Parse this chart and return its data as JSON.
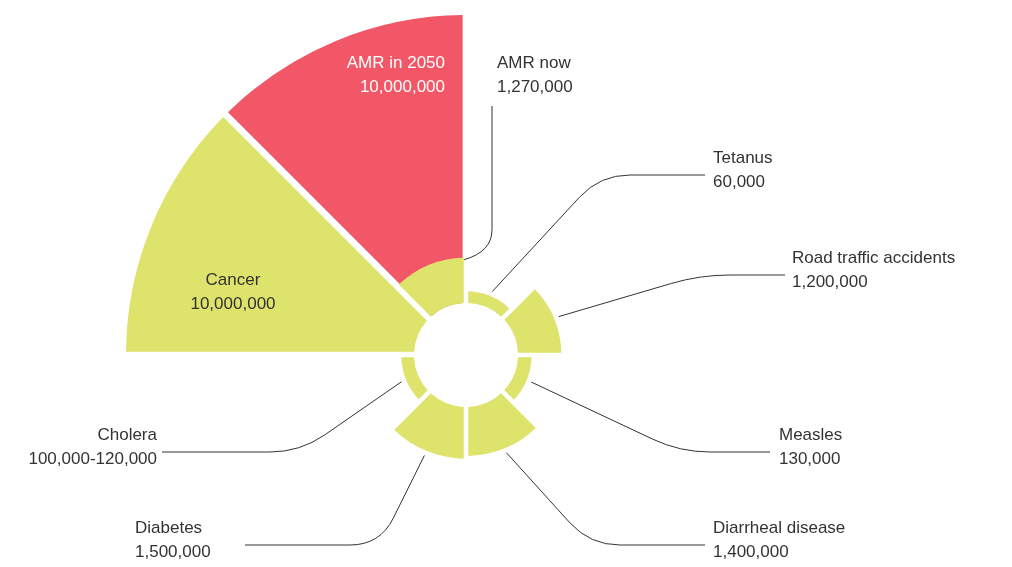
{
  "chart_data": {
    "type": "other",
    "categories": [
      "Tetanus",
      "Road traffic accidents",
      "Measles",
      "Diarrheal disease",
      "Diabetes",
      "Cholera",
      "Cancer",
      "AMR now"
    ],
    "series": [
      {
        "color": "#dde36b",
        "values": [
          60000,
          1200000,
          130000,
          1400000,
          1500000,
          100000,
          10000000,
          1270000
        ],
        "value_labels": [
          "60,000",
          "1,200,000",
          "130,000",
          "1,400,000",
          "1,500,000",
          "100,000-120,000",
          "10,000,000",
          "1,270,000"
        ]
      },
      {
        "name": "AMR in 2050",
        "color": "#f25767",
        "values": [
          null,
          null,
          null,
          null,
          null,
          null,
          null,
          10000000
        ],
        "value_labels": [
          null,
          null,
          null,
          null,
          null,
          null,
          null,
          "10,000,000"
        ]
      }
    ]
  }
}
